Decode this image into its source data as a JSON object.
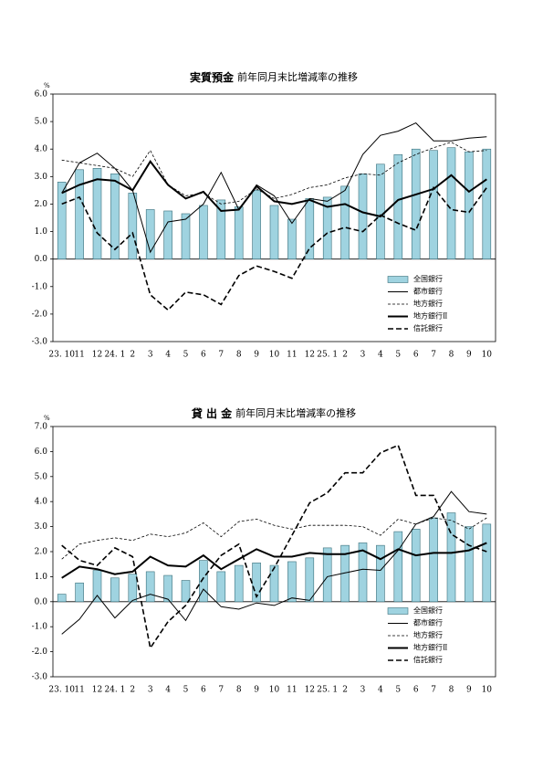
{
  "chart_data": [
    {
      "type": "bar-line",
      "title": "実質預金",
      "subtitle": "前年同月末比増減率の推移",
      "y_unit": "%",
      "categories": [
        "23. 10",
        "11",
        "12",
        "24. 1",
        "2",
        "3",
        "4",
        "5",
        "6",
        "7",
        "8",
        "9",
        "10",
        "11",
        "12",
        "25. 1",
        "2",
        "3",
        "4",
        "5",
        "6",
        "7",
        "8",
        "9",
        "10"
      ],
      "ylim": [
        -3,
        6
      ],
      "yticks": [
        {
          "value": -3,
          "label": "-3.0"
        },
        {
          "value": -2,
          "label": "-2.0"
        },
        {
          "value": -1,
          "label": "-1.0"
        },
        {
          "value": 0,
          "label": "0.0"
        },
        {
          "value": 1,
          "label": "1.0"
        },
        {
          "value": 2,
          "label": "2.0"
        },
        {
          "value": 3,
          "label": "3.0"
        },
        {
          "value": 4,
          "label": "4.0"
        },
        {
          "value": 5,
          "label": "5.0"
        },
        {
          "value": 6,
          "label": "6.0"
        }
      ],
      "legend": "lower right",
      "series": [
        {
          "name": "全国銀行",
          "color": "#9fd3e0",
          "values": [
            2.8,
            3.25,
            3.3,
            3.1,
            2.4,
            1.8,
            1.75,
            1.65,
            1.95,
            2.15,
            1.9,
            2.5,
            1.95,
            1.45,
            2.2,
            2.25,
            2.65,
            3.1,
            3.45,
            3.8,
            4.0,
            3.95,
            4.05,
            3.9,
            4.0
          ]
        },
        {
          "name": "都市銀行",
          "color": "#000000",
          "values": [
            2.4,
            3.5,
            3.85,
            3.3,
            2.5,
            0.25,
            1.35,
            1.45,
            2.0,
            3.15,
            1.8,
            2.7,
            2.3,
            1.3,
            2.2,
            2.1,
            2.5,
            3.8,
            4.5,
            4.65,
            4.95,
            4.3,
            4.3,
            4.4,
            4.45
          ]
        },
        {
          "name": "地方銀行",
          "color": "#000000",
          "values": [
            3.6,
            3.5,
            3.4,
            3.3,
            3.0,
            3.95,
            2.7,
            2.3,
            2.4,
            2.0,
            2.1,
            2.55,
            2.2,
            2.35,
            2.6,
            2.7,
            2.95,
            3.1,
            3.05,
            3.5,
            3.8,
            4.05,
            4.25,
            3.9,
            3.95
          ]
        },
        {
          "name": "地方銀行Ⅱ",
          "color": "#000000",
          "values": [
            2.4,
            2.7,
            2.9,
            2.85,
            2.5,
            3.55,
            2.7,
            2.2,
            2.45,
            1.75,
            1.8,
            2.65,
            2.1,
            2.0,
            2.15,
            1.9,
            2.0,
            1.7,
            1.55,
            2.15,
            2.35,
            2.55,
            3.05,
            2.45,
            2.9
          ]
        },
        {
          "name": "信託銀行",
          "color": "#000000",
          "values": [
            2.0,
            2.25,
            0.95,
            0.35,
            0.95,
            -1.3,
            -1.85,
            -1.2,
            -1.3,
            -1.65,
            -0.6,
            -0.25,
            -0.45,
            -0.7,
            0.4,
            0.95,
            1.15,
            1.0,
            1.6,
            1.3,
            1.05,
            2.6,
            1.8,
            1.7,
            2.6
          ]
        }
      ]
    },
    {
      "type": "bar-line",
      "title": "貸 出 金",
      "subtitle": "前年同月末比増減率の推移",
      "y_unit": "%",
      "categories": [
        "23. 10",
        "11",
        "12",
        "24. 1",
        "2",
        "3",
        "4",
        "5",
        "6",
        "7",
        "8",
        "9",
        "10",
        "11",
        "12",
        "25. 1",
        "2",
        "3",
        "4",
        "5",
        "6",
        "7",
        "8",
        "9",
        "10"
      ],
      "ylim": [
        -3,
        7
      ],
      "yticks": [
        {
          "value": -3,
          "label": "-3.0"
        },
        {
          "value": -2,
          "label": "-2.0"
        },
        {
          "value": -1,
          "label": "-1.0"
        },
        {
          "value": 0,
          "label": "0.0"
        },
        {
          "value": 1,
          "label": "1.0"
        },
        {
          "value": 2,
          "label": "2.0"
        },
        {
          "value": 3,
          "label": "3.0"
        },
        {
          "value": 4,
          "label": "4.0"
        },
        {
          "value": 5,
          "label": "5.0"
        },
        {
          "value": 6,
          "label": "6.0"
        },
        {
          "value": 7,
          "label": "7.0"
        }
      ],
      "legend": "lower right",
      "series": [
        {
          "name": "全国銀行",
          "color": "#9fd3e0",
          "values": [
            0.3,
            0.75,
            1.25,
            0.95,
            1.1,
            1.2,
            1.05,
            0.85,
            1.65,
            1.2,
            1.45,
            1.55,
            1.45,
            1.6,
            1.75,
            2.15,
            2.25,
            2.35,
            2.25,
            2.8,
            2.9,
            3.35,
            3.55,
            3.0,
            3.1
          ]
        },
        {
          "name": "都市銀行",
          "color": "#000000",
          "values": [
            -1.3,
            -0.7,
            0.25,
            -0.65,
            0.05,
            0.3,
            0.1,
            -0.75,
            0.5,
            -0.2,
            -0.3,
            -0.05,
            -0.15,
            0.15,
            0.05,
            1.0,
            1.15,
            1.3,
            1.25,
            2.05,
            3.1,
            3.4,
            4.4,
            3.6,
            3.5
          ]
        },
        {
          "name": "地方銀行",
          "color": "#000000",
          "values": [
            1.7,
            2.3,
            2.45,
            2.55,
            2.45,
            2.7,
            2.6,
            2.75,
            3.15,
            2.6,
            3.2,
            3.3,
            3.05,
            2.9,
            3.05,
            3.05,
            3.05,
            3.0,
            2.65,
            3.3,
            3.1,
            3.35,
            3.25,
            2.9,
            3.35
          ]
        },
        {
          "name": "地方銀行Ⅱ",
          "color": "#000000",
          "values": [
            0.95,
            1.4,
            1.3,
            1.1,
            1.2,
            1.8,
            1.45,
            1.4,
            1.85,
            1.3,
            1.7,
            2.1,
            1.8,
            1.8,
            1.95,
            1.9,
            1.9,
            2.05,
            1.7,
            2.1,
            1.85,
            1.95,
            1.95,
            2.05,
            2.35
          ]
        },
        {
          "name": "信託銀行",
          "color": "#000000",
          "values": [
            2.25,
            1.65,
            1.45,
            2.15,
            1.8,
            -1.85,
            -0.8,
            -0.15,
            0.95,
            1.85,
            2.3,
            0.2,
            1.35,
            2.65,
            3.95,
            4.35,
            5.15,
            5.15,
            5.95,
            6.25,
            4.25,
            4.25,
            2.7,
            2.25,
            2.0
          ]
        }
      ]
    }
  ]
}
